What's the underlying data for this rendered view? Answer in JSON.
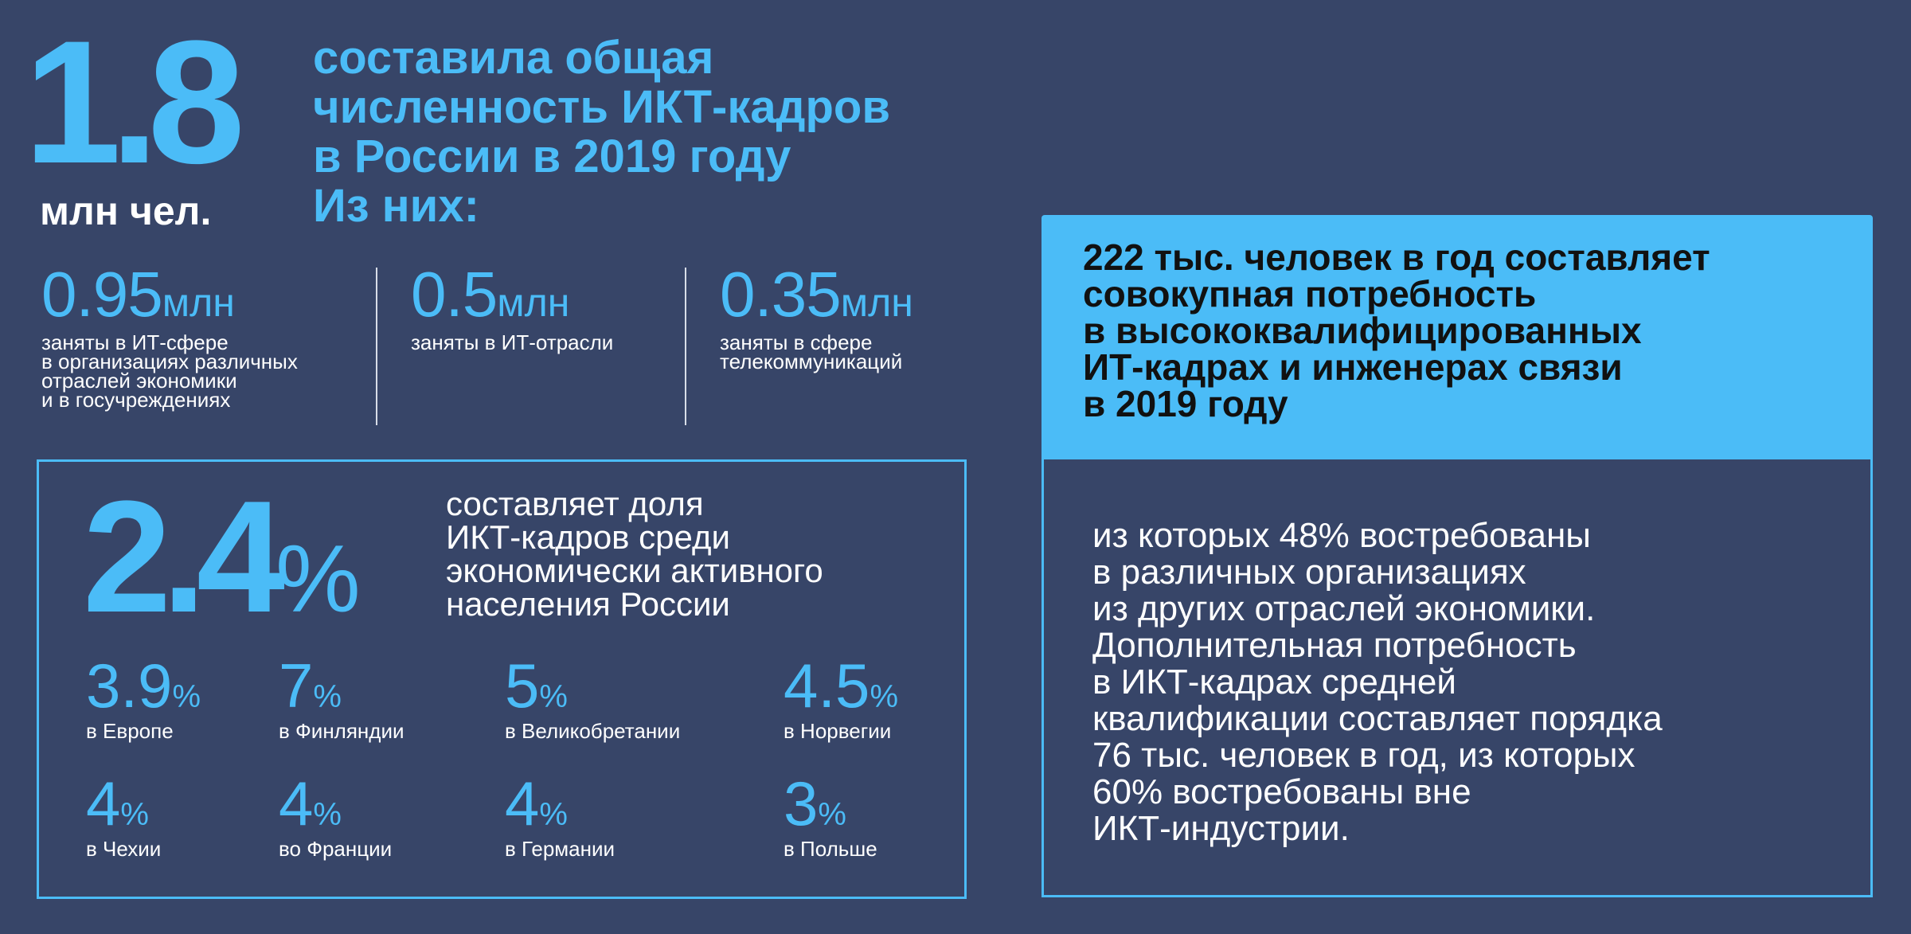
{
  "header": {
    "big_number": "1.8",
    "big_unit": "млн чел.",
    "headline_lines": [
      "составила общая",
      "численность ИКТ-кадров",
      "в России в 2019 году",
      "Из них:"
    ]
  },
  "breakdown": [
    {
      "value": "0.95",
      "unit": "млн",
      "desc_lines": [
        "заняты в ИТ-сфере",
        "в организациях различных",
        "отраслей экономики",
        "и в госучреждениях"
      ]
    },
    {
      "value": "0.5",
      "unit": "млн",
      "desc_lines": [
        "заняты в ИТ-отрасли"
      ]
    },
    {
      "value": "0.35",
      "unit": "млн",
      "desc_lines": [
        "заняты в сфере",
        "телекоммуникаций"
      ]
    }
  ],
  "share": {
    "value": "2.4",
    "unit": "%",
    "text_lines": [
      "составляет доля",
      "ИКТ-кадров среди",
      "экономически активного",
      "населения России"
    ]
  },
  "countries": [
    {
      "value": "3.9",
      "unit": "%",
      "label": "в Европе"
    },
    {
      "value": "7",
      "unit": "%",
      "label": "в Финляндии"
    },
    {
      "value": "5",
      "unit": "%",
      "label": "в Великобретании"
    },
    {
      "value": "4.5",
      "unit": "%",
      "label": "в Норвегии"
    },
    {
      "value": "4",
      "unit": "%",
      "label": "в Чехии"
    },
    {
      "value": "4",
      "unit": "%",
      "label": "во Франции"
    },
    {
      "value": "4",
      "unit": "%",
      "label": "в Германии"
    },
    {
      "value": "3",
      "unit": "%",
      "label": "в Польше"
    }
  ],
  "demand": {
    "title_lines": [
      "222 тыс. человек в год составляет",
      "совокупная потребность",
      "в высококвалифицированных",
      "ИТ-кадрах и инженерах связи",
      "в 2019 году"
    ],
    "body_lines": [
      "из которых 48% востребованы",
      "в различных организациях",
      "из других отраслей экономики.",
      "Дополнительная потребность",
      "в ИКТ-кадрах средней",
      "квалификации составляет порядка",
      "76 тыс. человек в год, из которых",
      "60% востребованы вне",
      "ИКТ-индустрии."
    ]
  },
  "colors": {
    "background": "#374568",
    "accent": "#4bbcf7",
    "text": "#ffffff",
    "title_text": "#111111"
  }
}
